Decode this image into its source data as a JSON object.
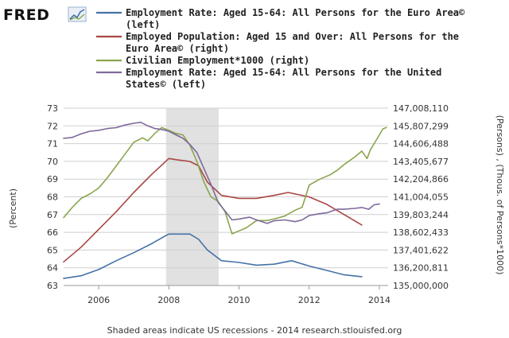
{
  "logo": {
    "text": "FRED",
    "icon": "chart-logo-icon"
  },
  "footer": "Shaded areas indicate US recessions - 2014 research.stlouisfed.org",
  "chart_data": {
    "type": "line",
    "x_ticks": [
      "2006",
      "2008",
      "2010",
      "2012",
      "2014"
    ],
    "xlim": [
      2005.0,
      2014.25
    ],
    "left_axis": {
      "label": "(Percent)",
      "ylim": [
        63,
        73
      ],
      "ticks": [
        "63",
        "64",
        "65",
        "66",
        "67",
        "68",
        "69",
        "70",
        "71",
        "72",
        "73"
      ]
    },
    "right_axis": {
      "label": "(Persons) , (Thous. of Persons*1000)",
      "ylim": [
        135000000,
        147008110
      ],
      "ticks": [
        "135,000,000",
        "136,200,811",
        "137,401,622",
        "138,602,433",
        "139,803,244",
        "141,004,055",
        "142,204,866",
        "143,405,677",
        "144,606,488",
        "145,807,299",
        "147,008,110"
      ]
    },
    "recession": {
      "start": 2007.92,
      "end": 2009.42
    },
    "grid": "horizontal",
    "legend_position": "top",
    "series": [
      {
        "name": "Employment Rate: Aged 15-64: All Persons for the Euro Area©",
        "legend_lines": [
          "Employment Rate: Aged 15-64: All Persons for the Euro Area©",
          "(left)"
        ],
        "axis": "left",
        "color": "#4572a7",
        "points": [
          [
            2005.0,
            63.4
          ],
          [
            2005.5,
            63.55
          ],
          [
            2006.0,
            63.9
          ],
          [
            2006.5,
            64.4
          ],
          [
            2007.0,
            64.85
          ],
          [
            2007.5,
            65.35
          ],
          [
            2007.9,
            65.8
          ],
          [
            2008.0,
            65.9
          ],
          [
            2008.25,
            65.9
          ],
          [
            2008.6,
            65.9
          ],
          [
            2008.85,
            65.6
          ],
          [
            2009.1,
            65.0
          ],
          [
            2009.5,
            64.4
          ],
          [
            2010.0,
            64.3
          ],
          [
            2010.5,
            64.15
          ],
          [
            2011.0,
            64.2
          ],
          [
            2011.5,
            64.4
          ],
          [
            2012.0,
            64.1
          ],
          [
            2012.5,
            63.85
          ],
          [
            2013.0,
            63.6
          ],
          [
            2013.5,
            63.5
          ]
        ]
      },
      {
        "name": "Employed Population: Aged 15 and Over: All Persons for the Euro Area©",
        "legend_lines": [
          "Employed Population: Aged 15 and Over: All Persons for the",
          "Euro Area© (right)"
        ],
        "axis": "right",
        "color": "#aa4643",
        "points": [
          [
            2005.0,
            136.6
          ],
          [
            2005.5,
            137.6
          ],
          [
            2006.0,
            138.8
          ],
          [
            2006.5,
            140.0
          ],
          [
            2007.0,
            141.3
          ],
          [
            2007.5,
            142.5
          ],
          [
            2008.0,
            143.6
          ],
          [
            2008.25,
            143.5
          ],
          [
            2008.6,
            143.4
          ],
          [
            2008.85,
            143.1
          ],
          [
            2009.1,
            142.0
          ],
          [
            2009.5,
            141.1
          ],
          [
            2010.0,
            140.9
          ],
          [
            2010.5,
            140.9
          ],
          [
            2011.0,
            141.1
          ],
          [
            2011.4,
            141.3
          ],
          [
            2012.0,
            141.0
          ],
          [
            2012.5,
            140.5
          ],
          [
            2013.0,
            139.8
          ],
          [
            2013.5,
            139.1
          ]
        ]
      },
      {
        "name": "Civilian Employment*1000",
        "legend_lines": [
          "Civilian Employment*1000 (right)"
        ],
        "axis": "right",
        "color": "#89a54e",
        "points": [
          [
            2005.0,
            139.6
          ],
          [
            2005.25,
            140.3
          ],
          [
            2005.5,
            140.9
          ],
          [
            2005.75,
            141.2
          ],
          [
            2006.0,
            141.6
          ],
          [
            2006.25,
            142.3
          ],
          [
            2006.5,
            143.1
          ],
          [
            2006.75,
            143.9
          ],
          [
            2007.0,
            144.7
          ],
          [
            2007.25,
            145.0
          ],
          [
            2007.4,
            144.8
          ],
          [
            2007.6,
            145.3
          ],
          [
            2007.8,
            145.7
          ],
          [
            2008.0,
            145.5
          ],
          [
            2008.2,
            145.3
          ],
          [
            2008.4,
            145.2
          ],
          [
            2008.6,
            144.5
          ],
          [
            2008.8,
            143.4
          ],
          [
            2009.0,
            142.0
          ],
          [
            2009.2,
            141.0
          ],
          [
            2009.4,
            140.7
          ],
          [
            2009.6,
            140.0
          ],
          [
            2009.8,
            138.5
          ],
          [
            2010.0,
            138.7
          ],
          [
            2010.2,
            138.9
          ],
          [
            2010.5,
            139.4
          ],
          [
            2010.8,
            139.4
          ],
          [
            2011.0,
            139.5
          ],
          [
            2011.3,
            139.7
          ],
          [
            2011.6,
            140.1
          ],
          [
            2011.8,
            140.3
          ],
          [
            2012.0,
            141.8
          ],
          [
            2012.3,
            142.2
          ],
          [
            2012.6,
            142.5
          ],
          [
            2012.8,
            142.8
          ],
          [
            2013.0,
            143.2
          ],
          [
            2013.3,
            143.7
          ],
          [
            2013.5,
            144.1
          ],
          [
            2013.65,
            143.6
          ],
          [
            2013.75,
            144.2
          ],
          [
            2013.9,
            144.8
          ],
          [
            2014.0,
            145.2
          ],
          [
            2014.1,
            145.6
          ],
          [
            2014.2,
            145.7
          ]
        ]
      },
      {
        "name": "Employment Rate: Aged 15-64: All Persons for the United States©",
        "legend_lines": [
          "Employment Rate: Aged 15-64: All Persons for the United",
          "States© (left)"
        ],
        "axis": "left",
        "color": "#80699b",
        "points": [
          [
            2005.0,
            71.3
          ],
          [
            2005.25,
            71.35
          ],
          [
            2005.5,
            71.55
          ],
          [
            2005.75,
            71.7
          ],
          [
            2006.0,
            71.75
          ],
          [
            2006.25,
            71.85
          ],
          [
            2006.5,
            71.9
          ],
          [
            2006.75,
            72.05
          ],
          [
            2007.0,
            72.15
          ],
          [
            2007.2,
            72.2
          ],
          [
            2007.4,
            72.0
          ],
          [
            2007.6,
            71.85
          ],
          [
            2007.8,
            71.8
          ],
          [
            2008.0,
            71.7
          ],
          [
            2008.2,
            71.5
          ],
          [
            2008.4,
            71.3
          ],
          [
            2008.6,
            70.95
          ],
          [
            2008.8,
            70.5
          ],
          [
            2009.0,
            69.6
          ],
          [
            2009.2,
            68.7
          ],
          [
            2009.4,
            67.7
          ],
          [
            2009.6,
            67.2
          ],
          [
            2009.8,
            66.7
          ],
          [
            2010.0,
            66.75
          ],
          [
            2010.3,
            66.85
          ],
          [
            2010.5,
            66.7
          ],
          [
            2010.8,
            66.5
          ],
          [
            2011.0,
            66.65
          ],
          [
            2011.3,
            66.7
          ],
          [
            2011.6,
            66.6
          ],
          [
            2011.8,
            66.7
          ],
          [
            2012.0,
            66.95
          ],
          [
            2012.3,
            67.05
          ],
          [
            2012.5,
            67.1
          ],
          [
            2012.8,
            67.3
          ],
          [
            2013.0,
            67.3
          ],
          [
            2013.3,
            67.35
          ],
          [
            2013.5,
            67.4
          ],
          [
            2013.7,
            67.3
          ],
          [
            2013.85,
            67.55
          ],
          [
            2014.0,
            67.6
          ]
        ]
      }
    ]
  }
}
